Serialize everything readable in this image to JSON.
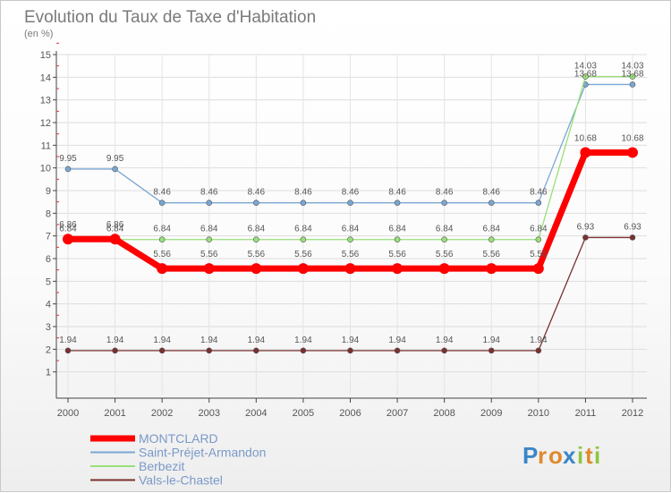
{
  "chart_data": {
    "type": "line",
    "title": "Evolution du Taux de Taxe d'Habitation",
    "subtitle": "(en %)",
    "xlabel": "",
    "ylabel": "",
    "x": [
      "2000",
      "2001",
      "2002",
      "2003",
      "2004",
      "2005",
      "2006",
      "2007",
      "2008",
      "2009",
      "2010",
      "2011",
      "2012"
    ],
    "ylim": [
      0,
      15
    ],
    "yticks": [
      1,
      2,
      3,
      4,
      5,
      6,
      7,
      8,
      9,
      10,
      11,
      12,
      13,
      14,
      15
    ],
    "grid": true,
    "legend_position": "bottom-left",
    "series": [
      {
        "name": "MONTCLARD",
        "color": "#ff0000",
        "values": [
          6.86,
          6.86,
          5.56,
          5.56,
          5.56,
          5.56,
          5.56,
          5.56,
          5.56,
          5.56,
          5.56,
          10.68,
          10.68
        ]
      },
      {
        "name": "Saint-Préjet-Armandon",
        "color": "#7aa7d4",
        "values": [
          9.95,
          9.95,
          8.46,
          8.46,
          8.46,
          8.46,
          8.46,
          8.46,
          8.46,
          8.46,
          8.46,
          13.68,
          13.68
        ]
      },
      {
        "name": "Berbezit",
        "color": "#99e07a",
        "values": [
          6.84,
          6.84,
          6.84,
          6.84,
          6.84,
          6.84,
          6.84,
          6.84,
          6.84,
          6.84,
          6.84,
          14.03,
          14.03
        ]
      },
      {
        "name": "Vals-le-Chastel",
        "color": "#7a3030",
        "values": [
          1.94,
          1.94,
          1.94,
          1.94,
          1.94,
          1.94,
          1.94,
          1.94,
          1.94,
          1.94,
          1.94,
          6.93,
          6.93
        ]
      }
    ],
    "value_labels": {
      "MONTCLARD": [
        "6.86",
        "6.86",
        "5.56",
        "5.56",
        "5.56",
        "5.56",
        "5.56",
        "5.56",
        "5.56",
        "5.56",
        "5.56",
        "10.68",
        "10.68"
      ],
      "Saint-Préjet-Armandon": [
        "9.95",
        "9.95",
        "8.46",
        "8.46",
        "8.46",
        "8.46",
        "8.46",
        "8.46",
        "8.46",
        "8.46",
        "8.46",
        "13.68",
        "13.68"
      ],
      "Berbezit": [
        "6.84",
        "6.84",
        "6.84",
        "6.84",
        "6.84",
        "6.84",
        "6.84",
        "6.84",
        "6.84",
        "6.84",
        "6.84",
        "14.03",
        "14.03"
      ],
      "Vals-le-Chastel": [
        "1.94",
        "1.94",
        "1.94",
        "1.94",
        "1.94",
        "1.94",
        "1.94",
        "1.94",
        "1.94",
        "1.94",
        "1.94",
        "6.93",
        "6.93"
      ]
    }
  },
  "logo": {
    "letters": [
      "P",
      "r",
      "o",
      "x",
      "i",
      "t",
      "i"
    ],
    "colors": [
      "#3a86c8",
      "#e08a2c",
      "#e08a2c",
      "#3a86c8",
      "#8cc63f",
      "#e08a2c",
      "#8cc63f"
    ]
  }
}
